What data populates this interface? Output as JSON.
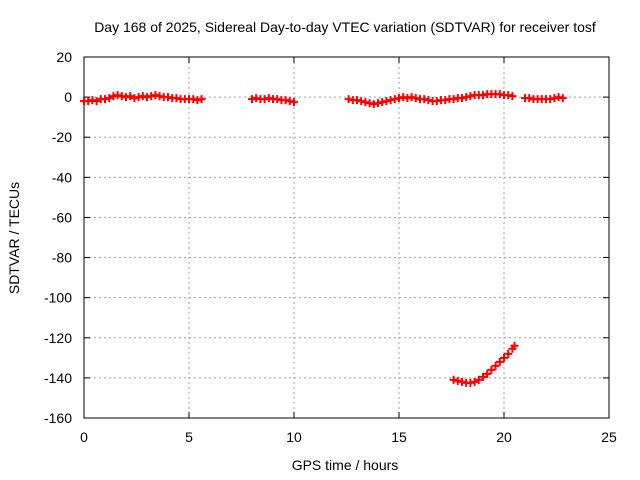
{
  "chart_data": {
    "type": "scatter",
    "title": "Day 168 of 2025, Sidereal Day-to-day VTEC variation (SDTVAR) for receiver tosf",
    "xlabel": "GPS time / hours",
    "ylabel": "SDTVAR / TECUs",
    "xlim": [
      0,
      25
    ],
    "ylim": [
      -160,
      20
    ],
    "xticks": [
      0,
      5,
      10,
      15,
      20,
      25
    ],
    "yticks": [
      20,
      0,
      -20,
      -40,
      -60,
      -80,
      -100,
      -120,
      -140,
      -160
    ],
    "grid": true,
    "legend": "none",
    "marker": "+",
    "colors": {
      "series": "#ff0000",
      "grid": "#a0a0a0",
      "axis": "#000000"
    },
    "series": [
      {
        "color": "#ff0000",
        "points": [
          [
            0.0,
            -2
          ],
          [
            0.2,
            -2
          ],
          [
            0.4,
            -1.5
          ],
          [
            0.6,
            -2
          ],
          [
            0.8,
            -1
          ],
          [
            1.0,
            -1
          ],
          [
            1.2,
            -0.5
          ],
          [
            1.4,
            0.5
          ],
          [
            1.6,
            1
          ],
          [
            1.8,
            0.5
          ],
          [
            2.0,
            0
          ],
          [
            2.2,
            0.5
          ],
          [
            2.4,
            -0.5
          ],
          [
            2.6,
            0
          ],
          [
            2.8,
            0.5
          ],
          [
            3.0,
            0
          ],
          [
            3.2,
            0.5
          ],
          [
            3.4,
            1
          ],
          [
            3.6,
            0.5
          ],
          [
            3.8,
            0
          ],
          [
            4.0,
            0
          ],
          [
            4.2,
            -0.5
          ],
          [
            4.4,
            -0.5
          ],
          [
            4.6,
            -1
          ],
          [
            4.8,
            -1
          ],
          [
            5.0,
            -1
          ],
          [
            5.2,
            -1
          ],
          [
            5.4,
            -1.5
          ],
          [
            5.6,
            -1
          ],
          [
            8.0,
            -1
          ],
          [
            8.2,
            -0.5
          ],
          [
            8.4,
            -1
          ],
          [
            8.6,
            -1
          ],
          [
            8.8,
            -0.5
          ],
          [
            9.0,
            -1
          ],
          [
            9.2,
            -1
          ],
          [
            9.4,
            -1.5
          ],
          [
            9.6,
            -1.5
          ],
          [
            9.8,
            -2
          ],
          [
            10.0,
            -2.5
          ],
          [
            12.6,
            -1
          ],
          [
            12.8,
            -1.5
          ],
          [
            13.0,
            -1.5
          ],
          [
            13.2,
            -2
          ],
          [
            13.4,
            -2.5
          ],
          [
            13.6,
            -3
          ],
          [
            13.8,
            -3.5
          ],
          [
            14.0,
            -3
          ],
          [
            14.2,
            -2.5
          ],
          [
            14.4,
            -2
          ],
          [
            14.6,
            -1.5
          ],
          [
            14.8,
            -1
          ],
          [
            15.0,
            -0.5
          ],
          [
            15.2,
            0
          ],
          [
            15.4,
            -0.5
          ],
          [
            15.6,
            0
          ],
          [
            15.8,
            -0.5
          ],
          [
            16.0,
            -1
          ],
          [
            16.2,
            -1
          ],
          [
            16.4,
            -1.5
          ],
          [
            16.6,
            -2
          ],
          [
            16.8,
            -2
          ],
          [
            17.0,
            -1.5
          ],
          [
            17.2,
            -1.5
          ],
          [
            17.4,
            -1
          ],
          [
            17.6,
            -1
          ],
          [
            17.8,
            -0.5
          ],
          [
            18.0,
            -0.5
          ],
          [
            18.2,
            0
          ],
          [
            18.4,
            0.5
          ],
          [
            18.6,
            1
          ],
          [
            18.8,
            1
          ],
          [
            19.0,
            1
          ],
          [
            19.2,
            1.5
          ],
          [
            19.4,
            1.5
          ],
          [
            19.6,
            1.5
          ],
          [
            19.8,
            1.5
          ],
          [
            20.0,
            1
          ],
          [
            20.2,
            1
          ],
          [
            20.4,
            0.5
          ],
          [
            21.0,
            -0.5
          ],
          [
            21.2,
            -0.5
          ],
          [
            21.4,
            -1
          ],
          [
            21.6,
            -1
          ],
          [
            21.8,
            -1
          ],
          [
            22.0,
            -1
          ],
          [
            22.2,
            -1
          ],
          [
            22.4,
            -0.5
          ],
          [
            22.6,
            0
          ],
          [
            22.8,
            -0.5
          ],
          [
            17.6,
            -141
          ],
          [
            17.8,
            -141.5
          ],
          [
            18.0,
            -142
          ],
          [
            18.2,
            -142.5
          ],
          [
            18.4,
            -142.5
          ],
          [
            18.6,
            -142
          ],
          [
            18.8,
            -141
          ],
          [
            19.0,
            -139.5
          ],
          [
            19.2,
            -138
          ],
          [
            19.4,
            -136
          ],
          [
            19.6,
            -134
          ],
          [
            19.8,
            -132
          ],
          [
            20.0,
            -130
          ],
          [
            20.2,
            -128
          ],
          [
            20.4,
            -125.5
          ],
          [
            20.5,
            -124
          ]
        ]
      }
    ]
  }
}
